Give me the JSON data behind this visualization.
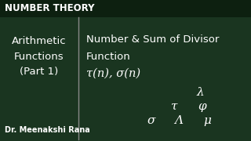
{
  "bg_color": "#1a3520",
  "header_bg": "#0d2010",
  "header_text": "NUMBER THEORY",
  "header_color": "#ffffff",
  "left_title_line1": "Arithmetic",
  "left_title_line2": "Functions",
  "left_title_line3": "(Part 1)",
  "right_title_line1": "Number & Sum of Divisor",
  "right_title_line2": "Function",
  "right_formula": "τ(n), σ(n)",
  "bottom_author": "Dr. Meenakshi Rana",
  "greek_lambda": "λ",
  "greek_tau": "τ",
  "greek_phi": "φ",
  "greek_sigma": "σ",
  "greek_Lambda": "Λ",
  "greek_mu": "μ",
  "divider_color": "#888888",
  "text_color": "#ffffff",
  "header_font_size": 8.5,
  "main_font_size": 9.5,
  "formula_font_size": 10.5,
  "greek_font_size": 11,
  "author_font_size": 7
}
